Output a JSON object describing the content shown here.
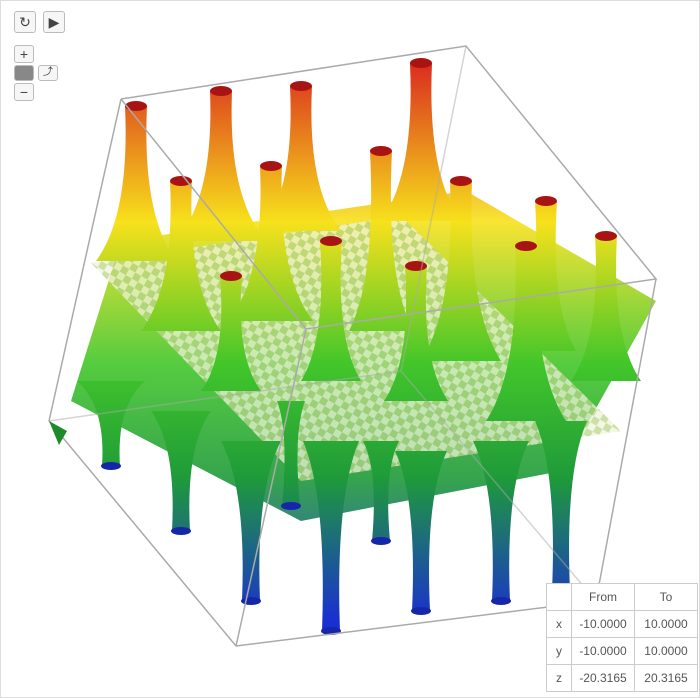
{
  "controls": {
    "zoom_in": "+",
    "zoom_out": "−"
  },
  "range_table": {
    "header": [
      "From",
      "To"
    ],
    "rows": [
      [
        "x",
        "-10.0000",
        "10.0000"
      ],
      [
        "y",
        "-10.0000",
        "10.0000"
      ],
      [
        "z",
        "-20.3165",
        "20.3165"
      ]
    ]
  }
}
